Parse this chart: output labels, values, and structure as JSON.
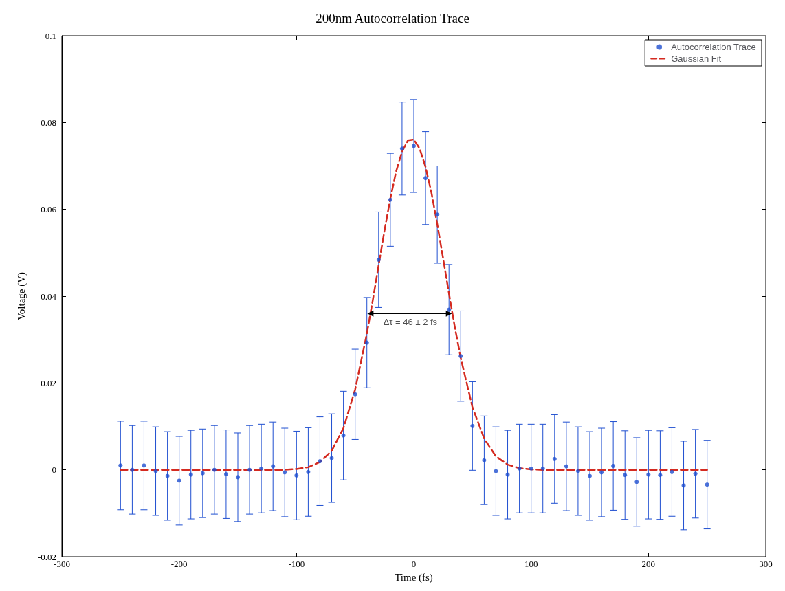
{
  "chart_data": {
    "type": "scatter",
    "title": "200nm Autocorrelation Trace",
    "xlabel": "Time (fs)",
    "ylabel": "Voltage (V)",
    "xlim": [
      -300,
      300
    ],
    "xticks": [
      -300,
      -200,
      -100,
      0,
      100,
      200,
      300
    ],
    "ylim": [
      -0.02,
      0.1
    ],
    "yticks": [
      -0.02,
      0,
      0.02,
      0.04,
      0.06,
      0.08,
      0.1
    ],
    "grid": false,
    "legend": "top right",
    "annotations": [
      {
        "text": "Δτ = 46 ± 2 fs",
        "x": -3,
        "y": 0.036
      }
    ],
    "series": [
      {
        "type": "line",
        "marker": "triangle",
        "line_style": "solid",
        "color": "#000000",
        "x": [
          -37,
          30
        ],
        "values": [
          0.036,
          0.036
        ]
      },
      {
        "name": "Autocorrelation Trace",
        "marker": "circle",
        "color": "#1f4fd0",
        "x": [
          -250,
          -240,
          -230,
          -220,
          -210,
          -200,
          -190,
          -180,
          -170,
          -160,
          -150,
          -140,
          -130,
          -120,
          -110,
          -100,
          -90,
          -80,
          -70,
          -60,
          -50,
          -40,
          -30,
          -20,
          -10,
          0,
          10,
          20,
          30,
          40,
          50,
          60,
          70,
          80,
          90,
          100,
          110,
          120,
          130,
          140,
          150,
          160,
          170,
          180,
          190,
          200,
          210,
          220,
          230,
          240,
          250
        ],
        "values": [
          0.001,
          0.0,
          0.001,
          -0.0003,
          -0.0014,
          -0.0025,
          -0.0011,
          -0.0008,
          0.0,
          -0.001,
          -0.0017,
          0.0,
          0.0003,
          0.0008,
          -0.0006,
          -0.0013,
          -0.0005,
          0.002,
          0.0027,
          0.0079,
          0.0174,
          0.0293,
          0.0484,
          0.0622,
          0.074,
          0.0746,
          0.0672,
          0.0588,
          0.0369,
          0.0262,
          0.0101,
          0.0022,
          -0.0003,
          -0.0011,
          0.0003,
          0.0003,
          0.0003,
          0.0025,
          0.0008,
          -0.0003,
          -0.0014,
          -0.0006,
          0.0009,
          -0.0012,
          -0.0028,
          -0.0011,
          -0.0012,
          -0.0005,
          -0.0036,
          -0.0009,
          -0.0034
        ],
        "errors": [
          0.0102,
          0.0102,
          0.0102,
          0.0102,
          0.0102,
          0.0102,
          0.0102,
          0.0102,
          0.0102,
          0.0102,
          0.0102,
          0.0102,
          0.0102,
          0.0102,
          0.0102,
          0.0102,
          0.0102,
          0.0102,
          0.0102,
          0.0102,
          0.0104,
          0.0104,
          0.011,
          0.0107,
          0.0107,
          0.0107,
          0.0107,
          0.0112,
          0.0104,
          0.0104,
          0.0102,
          0.0102,
          0.0102,
          0.0102,
          0.0102,
          0.0102,
          0.0102,
          0.0102,
          0.0102,
          0.0102,
          0.0102,
          0.0102,
          0.0102,
          0.0102,
          0.0102,
          0.0102,
          0.0102,
          0.0102,
          0.0102,
          0.0102,
          0.0102
        ]
      },
      {
        "name": "Gaussian Fit",
        "type": "line",
        "marker": "none",
        "line_style": "dashed",
        "color": "#d42a20",
        "x": [
          -250,
          -200,
          -150,
          -110,
          -100,
          -90,
          -80,
          -70,
          -60,
          -50,
          -40,
          -35,
          -30,
          -25,
          -20,
          -15,
          -10,
          -5,
          0,
          5,
          10,
          15,
          20,
          25,
          30,
          35,
          40,
          50,
          60,
          70,
          80,
          90,
          100,
          110,
          150,
          200,
          250
        ],
        "values": [
          0,
          0,
          0,
          0,
          0.0002,
          0.0006,
          0.0018,
          0.0044,
          0.0096,
          0.0185,
          0.0314,
          0.039,
          0.0471,
          0.0551,
          0.0625,
          0.0688,
          0.0733,
          0.0759,
          0.0761,
          0.074,
          0.0698,
          0.0639,
          0.0566,
          0.0487,
          0.0406,
          0.0328,
          0.0258,
          0.0144,
          0.0072,
          0.0031,
          0.0012,
          0.0004,
          0.0001,
          0,
          0,
          0,
          0
        ]
      }
    ]
  }
}
